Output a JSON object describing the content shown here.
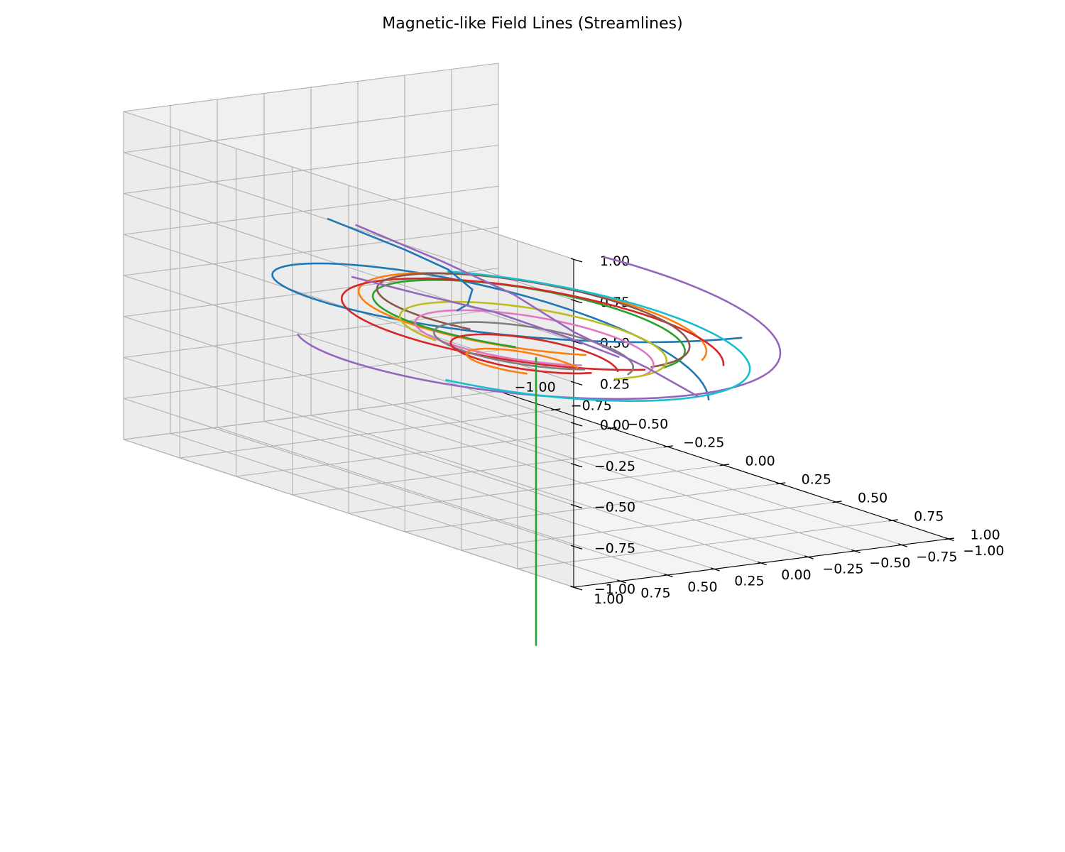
{
  "chart_data": {
    "type": "line",
    "title": "Magnetic-like Field Lines (Streamlines)",
    "xlabel": "",
    "ylabel": "",
    "zlabel": "",
    "xlim": [
      -1.0,
      1.0
    ],
    "ylim": [
      -1.0,
      1.0
    ],
    "zlim": [
      -1.0,
      1.0
    ],
    "grid": true,
    "pane_color": "#f2f2f2",
    "x_ticks": [
      "−1.00",
      "−0.75",
      "−0.50",
      "−0.25",
      "0.00",
      "0.25",
      "0.50",
      "0.75",
      "1.00"
    ],
    "y_ticks": [
      "−1.00",
      "−0.75",
      "−0.50",
      "−0.25",
      "0.00",
      "0.25",
      "0.50",
      "0.75",
      "1.00"
    ],
    "z_ticks": [
      "−1.00",
      "−0.75",
      "−0.50",
      "−0.25",
      "0.00",
      "0.25",
      "0.50",
      "0.75",
      "1.00"
    ],
    "series": [
      {
        "color": "#1f77b4",
        "kind": "spiral",
        "r_start": 1.12,
        "r_end": 0.6,
        "z_start": 0.45,
        "z_end": -0.35,
        "theta_start": 0.2,
        "theta_end": 5.4
      },
      {
        "color": "#ff7f0e",
        "kind": "spiral",
        "r_start": 0.62,
        "r_end": 0.58,
        "z_start": 0.1,
        "z_end": -0.02,
        "theta_start": 0.6,
        "theta_end": 5.8
      },
      {
        "color": "#2ca02c",
        "kind": "spiral",
        "r_start": 0.58,
        "r_end": 0.5,
        "z_start": 0.08,
        "z_end": -0.05,
        "theta_start": 1.0,
        "theta_end": 6.1
      },
      {
        "color": "#d62728",
        "kind": "spiral",
        "r_start": 0.68,
        "r_end": 0.64,
        "z_start": 0.05,
        "z_end": -0.08,
        "theta_start": 0.3,
        "theta_end": 5.6
      },
      {
        "color": "#9467bd",
        "kind": "spiral",
        "r_start": 0.84,
        "r_end": 0.82,
        "z_start": 0.15,
        "z_end": -0.22,
        "theta_start": 4.3,
        "theta_end": 8.6
      },
      {
        "color": "#8c564b",
        "kind": "spiral",
        "r_start": 0.55,
        "r_end": 0.52,
        "z_start": 0.12,
        "z_end": -0.02,
        "theta_start": 1.3,
        "theta_end": 6.3
      },
      {
        "color": "#e377c2",
        "kind": "spiral",
        "r_start": 0.42,
        "r_end": 0.4,
        "z_start": -0.05,
        "z_end": -0.15,
        "theta_start": 0.5,
        "theta_end": 6.0
      },
      {
        "color": "#7f7f7f",
        "kind": "spiral",
        "r_start": 0.36,
        "r_end": 0.33,
        "z_start": -0.1,
        "z_end": -0.18,
        "theta_start": 0.4,
        "theta_end": 5.9
      },
      {
        "color": "#bcbd22",
        "kind": "spiral",
        "r_start": 0.47,
        "r_end": 0.44,
        "z_start": -0.05,
        "z_end": -0.12,
        "theta_start": 1.7,
        "theta_end": 6.5
      },
      {
        "color": "#17becf",
        "kind": "spiral",
        "r_start": 0.74,
        "r_end": 0.72,
        "z_start": -0.02,
        "z_end": -0.15,
        "theta_start": 3.6,
        "theta_end": 7.6
      },
      {
        "color": "#d62728",
        "kind": "spiral",
        "r_start": 0.3,
        "r_end": 0.28,
        "z_start": -0.15,
        "z_end": -0.22,
        "theta_start": 0.2,
        "theta_end": 5.5
      },
      {
        "color": "#ff7f0e",
        "kind": "spiral",
        "r_start": 0.26,
        "r_end": 0.2,
        "z_start": -0.2,
        "z_end": -0.28,
        "theta_start": 1.0,
        "theta_end": 4.8
      },
      {
        "color": "#1f77b4",
        "kind": "polyline",
        "points": [
          [
            -0.05,
            1.05,
            0.78
          ],
          [
            0.25,
            1.0,
            0.72
          ],
          [
            0.4,
            0.95,
            0.66
          ],
          [
            0.45,
            0.88,
            0.55
          ],
          [
            0.38,
            0.82,
            0.42
          ],
          [
            0.3,
            0.78,
            0.34
          ]
        ]
      },
      {
        "color": "#9467bd",
        "kind": "polyline",
        "points": [
          [
            -0.05,
            0.9,
            0.72
          ],
          [
            0.3,
            0.86,
            0.65
          ],
          [
            0.55,
            0.78,
            0.55
          ],
          [
            0.75,
            0.7,
            0.4
          ],
          [
            0.95,
            0.55,
            0.25
          ],
          [
            1.05,
            0.4,
            0.1
          ]
        ]
      },
      {
        "color": "#9467bd",
        "kind": "polyline",
        "points": [
          [
            -0.3,
            0.62,
            0.25
          ],
          [
            0.0,
            0.62,
            0.28
          ],
          [
            0.3,
            0.58,
            0.3
          ],
          [
            0.55,
            0.5,
            0.25
          ],
          [
            0.7,
            0.4,
            0.18
          ]
        ]
      },
      {
        "color": "#2ca02c",
        "kind": "vertical",
        "x": 0.0,
        "y": 0.0,
        "z_start": -0.2,
        "z_end": -1.95
      }
    ]
  }
}
